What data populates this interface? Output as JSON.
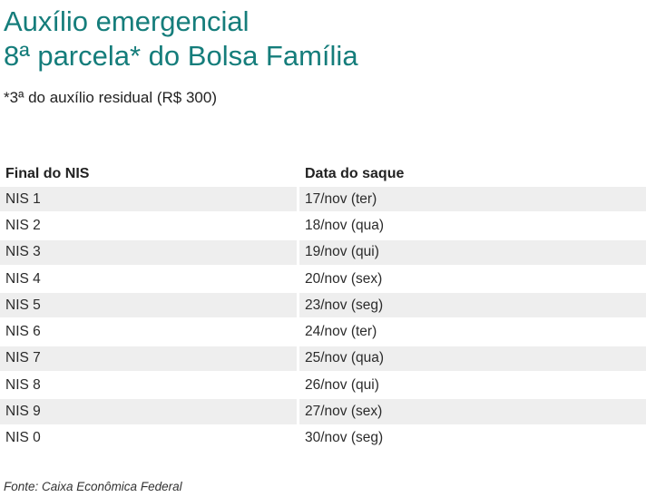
{
  "header": {
    "title_line1": "Auxílio emergencial",
    "title_line2": "8ª parcela* do Bolsa Família",
    "subtitle": "*3ª do auxílio residual (R$ 300)"
  },
  "chart_data": {
    "type": "table",
    "title": "Auxílio emergencial 8ª parcela* do Bolsa Família",
    "subtitle": "*3ª do auxílio residual (R$ 300)",
    "columns": [
      "Final do NIS",
      "Data do saque"
    ],
    "rows": [
      [
        "NIS 1",
        "17/nov (ter)"
      ],
      [
        "NIS 2",
        "18/nov (qua)"
      ],
      [
        "NIS 3",
        "19/nov (qui)"
      ],
      [
        "NIS 4",
        "20/nov (sex)"
      ],
      [
        "NIS 5",
        "23/nov (seg)"
      ],
      [
        "NIS 6",
        "24/nov (ter)"
      ],
      [
        "NIS 7",
        "25/nov (qua)"
      ],
      [
        "NIS 8",
        "26/nov (qui)"
      ],
      [
        "NIS 9",
        "27/nov (sex)"
      ],
      [
        "NIS 0",
        "30/nov (seg)"
      ]
    ],
    "source": "Fonte: Caixa Econômica Federal",
    "layout_hints": {
      "stripe_rows": "odd rows shaded",
      "grid": false,
      "legend": "none"
    }
  },
  "colors": {
    "accent_teal": "#157d7b",
    "row_stripe": "#eeeeee",
    "text": "#222222"
  }
}
